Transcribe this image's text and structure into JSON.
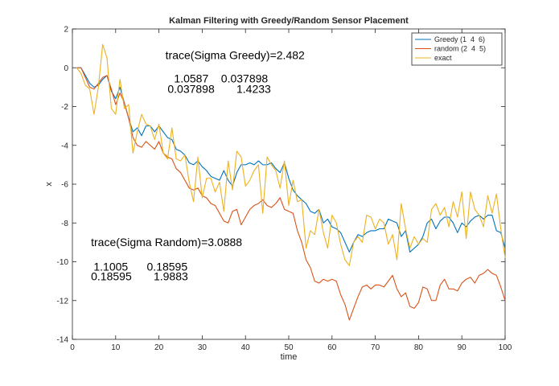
{
  "chart_data": {
    "type": "line",
    "title": "Kalman Filtering with Greedy/Random Sensor Placement",
    "xlabel": "time",
    "ylabel": "x",
    "xlim": [
      0,
      100
    ],
    "ylim": [
      -14,
      2
    ],
    "xticks": [
      0,
      10,
      20,
      30,
      40,
      50,
      60,
      70,
      80,
      90,
      100
    ],
    "yticks": [
      2,
      0,
      -2,
      -4,
      -6,
      -8,
      -10,
      -12,
      -14
    ],
    "grid": false,
    "legend_position": "top-right",
    "x": [
      1,
      2,
      3,
      4,
      5,
      6,
      7,
      8,
      9,
      10,
      11,
      12,
      13,
      14,
      15,
      16,
      17,
      18,
      19,
      20,
      21,
      22,
      23,
      24,
      25,
      26,
      27,
      28,
      29,
      30,
      31,
      32,
      33,
      34,
      35,
      36,
      37,
      38,
      39,
      40,
      41,
      42,
      43,
      44,
      45,
      46,
      47,
      48,
      49,
      50,
      51,
      52,
      53,
      54,
      55,
      56,
      57,
      58,
      59,
      60,
      61,
      62,
      63,
      64,
      65,
      66,
      67,
      68,
      69,
      70,
      71,
      72,
      73,
      74,
      75,
      76,
      77,
      78,
      79,
      80,
      81,
      82,
      83,
      84,
      85,
      86,
      87,
      88,
      89,
      90,
      91,
      92,
      93,
      94,
      95,
      96,
      97,
      98,
      99,
      100
    ],
    "series": [
      {
        "name": "Greedy (1  4  6)",
        "color": "#0072BD",
        "values": [
          0,
          0,
          -0.4,
          -0.8,
          -1.0,
          -0.9,
          -0.6,
          -0.4,
          -1.2,
          -1.6,
          -1.0,
          -1.8,
          -2.6,
          -3.3,
          -3.1,
          -3.5,
          -3.0,
          -3.0,
          -3.3,
          -3.0,
          -3.3,
          -3.6,
          -3.7,
          -4.2,
          -4.3,
          -4.5,
          -4.9,
          -5.0,
          -4.8,
          -5.1,
          -5.3,
          -5.6,
          -5.7,
          -5.8,
          -5.3,
          -5.8,
          -6.1,
          -5.4,
          -5.0,
          -5.0,
          -4.9,
          -5.0,
          -4.8,
          -5.0,
          -5.0,
          -4.9,
          -5.2,
          -5.4,
          -4.9,
          -5.7,
          -6.3,
          -6.6,
          -6.8,
          -7.0,
          -7.4,
          -7.5,
          -7.3,
          -8.0,
          -7.8,
          -8.2,
          -8.3,
          -8.5,
          -9.0,
          -9.5,
          -9.0,
          -8.6,
          -8.7,
          -8.5,
          -8.4,
          -8.4,
          -8.3,
          -8.3,
          -7.8,
          -7.9,
          -8.0,
          -8.7,
          -8.4,
          -9.5,
          -9.3,
          -9.1,
          -8.7,
          -8.0,
          -7.8,
          -8.3,
          -7.9,
          -7.7,
          -7.7,
          -8.0,
          -8.5,
          -8.0,
          -8.2,
          -7.9,
          -7.7,
          -7.6,
          -7.8,
          -7.6,
          -7.6,
          -8.4,
          -8.5,
          -9.3
        ]
      },
      {
        "name": "random (2  4  5)",
        "color": "#D95319",
        "values": [
          0,
          0,
          -0.5,
          -1.0,
          -1.1,
          -0.8,
          -0.5,
          -0.4,
          -1.1,
          -1.9,
          -1.3,
          -1.8,
          -2.6,
          -3.6,
          -4.0,
          -4.1,
          -3.8,
          -4.0,
          -4.2,
          -3.8,
          -4.4,
          -4.6,
          -4.7,
          -5.2,
          -5.4,
          -5.8,
          -6.2,
          -6.3,
          -6.2,
          -6.6,
          -6.7,
          -7.0,
          -7.1,
          -7.5,
          -7.9,
          -8.0,
          -7.4,
          -7.3,
          -8.1,
          -7.7,
          -7.3,
          -7.1,
          -7.0,
          -6.8,
          -7.1,
          -7.2,
          -7.0,
          -6.7,
          -7.3,
          -7.4,
          -7.5,
          -8.4,
          -9.0,
          -9.9,
          -10.3,
          -11.0,
          -11.1,
          -10.9,
          -11.0,
          -10.9,
          -11.0,
          -11.7,
          -12.2,
          -13.0,
          -12.4,
          -11.8,
          -11.3,
          -11.2,
          -11.4,
          -11.2,
          -11.2,
          -11.3,
          -11.0,
          -10.7,
          -11.4,
          -11.8,
          -11.6,
          -12.3,
          -12.4,
          -12.1,
          -11.3,
          -11.4,
          -12.0,
          -12.0,
          -11.2,
          -10.9,
          -11.4,
          -11.4,
          -11.5,
          -11.1,
          -10.9,
          -10.8,
          -11.1,
          -10.7,
          -10.6,
          -10.4,
          -10.6,
          -10.7,
          -11.3,
          -12.0
        ]
      },
      {
        "name": "exact",
        "color": "#EDB120",
        "values": [
          0,
          -0.3,
          -0.9,
          -1.1,
          -2.4,
          -1.0,
          1.2,
          0.5,
          -2.1,
          -2.4,
          -0.6,
          -2.1,
          -1.9,
          -4.4,
          -3.3,
          -2.4,
          -2.9,
          -3.0,
          -3.7,
          -2.9,
          -4.4,
          -4.7,
          -3.1,
          -4.7,
          -4.8,
          -4.5,
          -5.9,
          -6.9,
          -4.6,
          -6.7,
          -5.7,
          -5.7,
          -6.4,
          -5.9,
          -7.4,
          -4.8,
          -6.3,
          -4.3,
          -4.6,
          -6.1,
          -5.8,
          -5.3,
          -5.0,
          -7.5,
          -4.6,
          -5.0,
          -5.3,
          -6.2,
          -4.8,
          -7.1,
          -5.8,
          -6.9,
          -6.8,
          -9.3,
          -8.4,
          -8.6,
          -7.3,
          -8.5,
          -9.3,
          -7.6,
          -8.0,
          -9.1,
          -9.9,
          -10.2,
          -9.0,
          -8.7,
          -9.0,
          -7.6,
          -7.7,
          -8.3,
          -7.8,
          -8.0,
          -9.1,
          -8.6,
          -9.9,
          -7.0,
          -8.3,
          -9.3,
          -8.7,
          -9.1,
          -8.8,
          -9.0,
          -7.3,
          -7.0,
          -7.6,
          -7.2,
          -8.2,
          -6.9,
          -7.7,
          -6.4,
          -8.8,
          -6.4,
          -7.3,
          -7.6,
          -8.2,
          -6.6,
          -7.5,
          -6.5,
          -8.3,
          -9.8
        ]
      }
    ],
    "annotations": [
      {
        "id": "greedy-trace",
        "text": "trace(Sigma Greedy)=2.482",
        "x": 21.5,
        "y": 0.45
      },
      {
        "id": "greedy-cov-row1",
        "text": "1.0587    0.037898",
        "x": 23.5,
        "y": -0.75
      },
      {
        "id": "greedy-cov-row2",
        "text": "0.037898       1.4233",
        "x": 22.0,
        "y": -1.3
      },
      {
        "id": "random-trace",
        "text": "trace(Sigma Random)=3.0888",
        "x": 4.3,
        "y": -9.2
      },
      {
        "id": "random-cov-row1",
        "text": "1.1005      0.18595",
        "x": 4.9,
        "y": -10.45
      },
      {
        "id": "random-cov-row2",
        "text": "0.18595       1.9883",
        "x": 4.3,
        "y": -10.95
      }
    ]
  }
}
